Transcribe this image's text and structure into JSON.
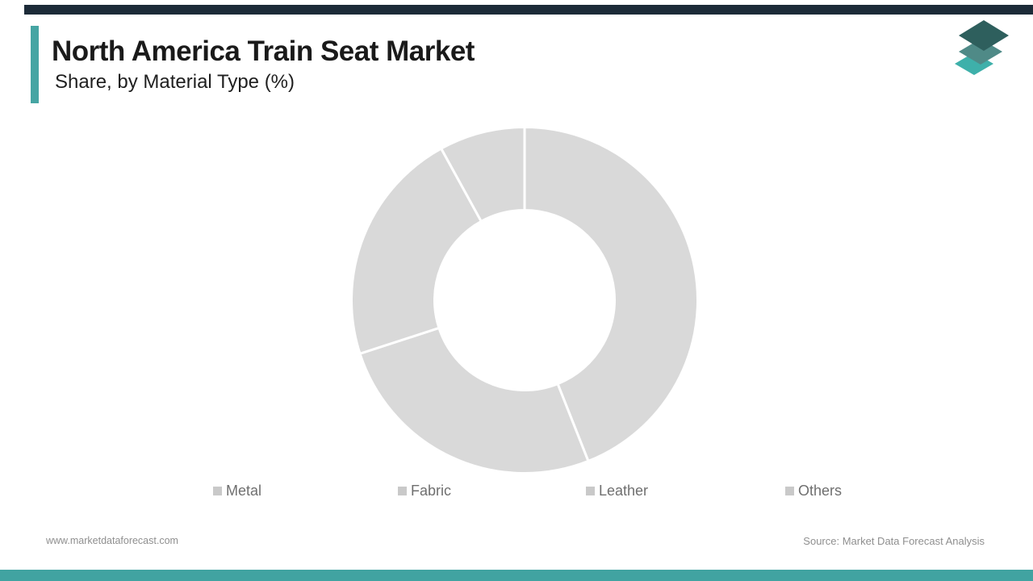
{
  "brand": {
    "accent_color": "#46A5A3",
    "top_bar_color": "#1C2B38",
    "bottom_bar_color": "#41A3A1",
    "logo_layer_colors": [
      "#3EB0AA",
      "#4F8A87",
      "#2E5F5D"
    ]
  },
  "header": {
    "title": "North America Train Seat Market",
    "subtitle": "Share, by Material Type (%)"
  },
  "chart_data": {
    "type": "pie",
    "variant": "donut",
    "title": "North America Train Seat Market Share, by Material Type (%)",
    "categories": [
      "Metal",
      "Fabric",
      "Leather",
      "Others"
    ],
    "values": [
      44,
      26,
      22,
      8
    ],
    "unit": "%",
    "start_angle_deg": 0,
    "direction": "clockwise",
    "inner_radius_ratio": 0.51,
    "slice_color": "#D9D9D9",
    "slice_gap_color": "#FFFFFF",
    "legend_position": "bottom",
    "legend_marker_color": "#C9C9C9",
    "data_labels_shown": false
  },
  "footer": {
    "website": "www.marketdataforecast.com",
    "source": "Source: Market Data Forecast Analysis"
  }
}
